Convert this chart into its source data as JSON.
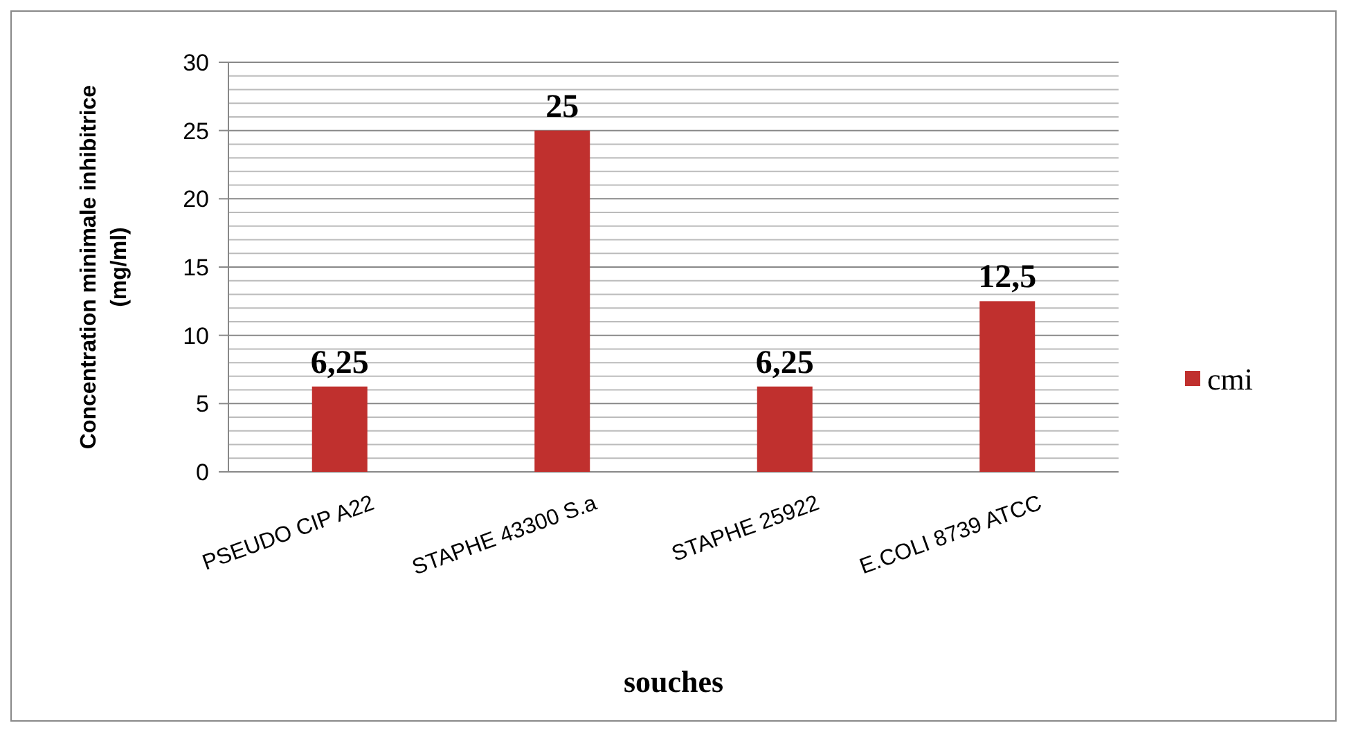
{
  "chart_data": {
    "type": "bar",
    "xlabel": "souches",
    "ylabel": "Concentration minimale inhibitrice (mg/ml)",
    "categories": [
      "PSEUDO CIP A22",
      "STAPHE 43300 S.a",
      "STAPHE 25922",
      "E.COLI 8739 ATCC"
    ],
    "series": [
      {
        "name": "cmi",
        "color": "#c0302e",
        "values": [
          6.25,
          25,
          6.25,
          12.5
        ],
        "value_labels": [
          "6,25",
          "25",
          "6,25",
          "12,5"
        ]
      }
    ],
    "ylim": [
      0,
      30
    ],
    "yticks": [
      0,
      {
        "value": 1,
        "label": null
      },
      {
        "value": 2,
        "label": null
      },
      {
        "value": 3,
        "label": null
      },
      {
        "value": 4,
        "label": null
      },
      5,
      {
        "value": 6,
        "label": null
      },
      {
        "value": 7,
        "label": null
      },
      {
        "value": 8,
        "label": null
      },
      {
        "value": 9,
        "label": null
      },
      10,
      {
        "value": 11,
        "label": null
      },
      {
        "value": 12,
        "label": null
      },
      {
        "value": 13,
        "label": null
      },
      {
        "value": 14,
        "label": null
      },
      15,
      {
        "value": 16,
        "label": null
      },
      {
        "value": 17,
        "label": null
      },
      {
        "value": 18,
        "label": null
      },
      {
        "value": 19,
        "label": null
      },
      20,
      {
        "value": 21,
        "label": null
      },
      {
        "value": 22,
        "label": null
      },
      {
        "value": 23,
        "label": null
      },
      {
        "value": 24,
        "label": null
      },
      25,
      {
        "value": 26,
        "label": null
      },
      {
        "value": 27,
        "label": null
      },
      {
        "value": 28,
        "label": null
      },
      {
        "value": 29,
        "label": null
      },
      30
    ],
    "grid": "y",
    "legend": "right"
  }
}
